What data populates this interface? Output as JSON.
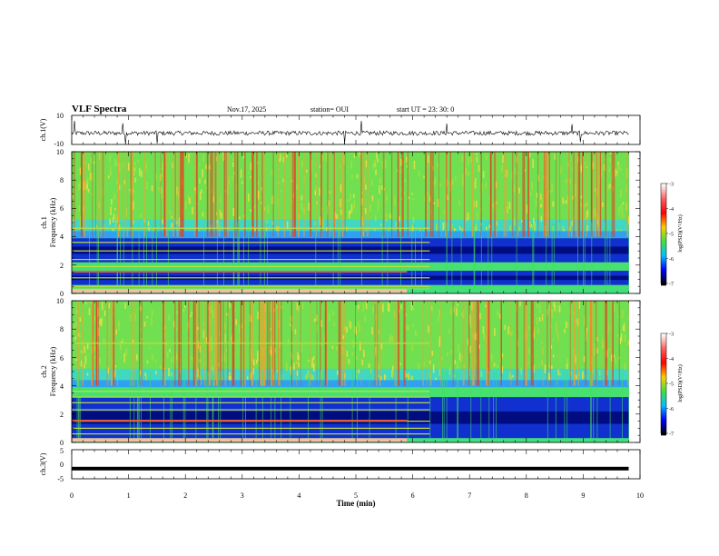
{
  "header": {
    "title": "VLF Spectra",
    "date": "Nov.17, 2025",
    "station": "station= OUI",
    "start": "start  UT  =   23: 30: 0"
  },
  "chart_data": [
    {
      "type": "line",
      "name": "ch1-waveform",
      "ylabel": "ch.1(V)",
      "ylim": [
        -10,
        10
      ],
      "y_ticks": [
        "10",
        "-10"
      ],
      "baseline": -2.2,
      "spike_times_min": [
        0.05,
        0.9,
        0.95,
        1.5,
        4.8,
        5.1,
        6.6,
        8.8,
        8.95
      ],
      "description": "waveform trace"
    },
    {
      "type": "heatmap",
      "name": "ch1-spectrogram",
      "ylabel": "ch.1\nFrequency (kHz)",
      "ylim": [
        0,
        10
      ],
      "y_ticks": [
        "0",
        "2",
        "4",
        "6",
        "8",
        "10"
      ],
      "xlim": [
        0,
        10
      ],
      "colorbar": {
        "label": "log(PSD)(V²/Hz)",
        "ticks": [
          "-3",
          "-4",
          "-5",
          "-6",
          "-7"
        ],
        "range": [
          -7,
          -3
        ]
      },
      "blue_band_khz": [
        [
          0.6,
          1.6
        ],
        [
          2.2,
          3.9
        ]
      ],
      "horizontal_lines_khz": [
        0.3,
        0.5,
        1.1,
        1.9,
        2.4,
        3.0,
        3.6,
        4.6
      ],
      "regime_change_min": 6.3
    },
    {
      "type": "heatmap",
      "name": "ch2-spectrogram",
      "ylabel": "ch.2\nFrequency (kHz)",
      "ylim": [
        0,
        10
      ],
      "y_ticks": [
        "0",
        "2",
        "4",
        "6",
        "8",
        "10"
      ],
      "xlim": [
        0,
        10
      ],
      "colorbar": {
        "label": "log(PSD)(V²/Hz)",
        "ticks": [
          "-3",
          "-4",
          "-5",
          "-6",
          "-7"
        ],
        "range": [
          -7,
          -3
        ]
      },
      "blue_band_khz": [
        [
          0.3,
          3.2
        ]
      ],
      "horizontal_lines_khz": [
        0.6,
        1.0,
        1.5,
        2.3,
        2.8,
        3.2,
        3.6,
        7.0
      ],
      "regime_change_min": 6.3
    },
    {
      "type": "line",
      "name": "ch3-waveform",
      "ylabel": "ch.3(V)",
      "ylim": [
        -5,
        5
      ],
      "y_ticks": [
        "5",
        "0",
        "-5"
      ],
      "constant_value": -1.5
    }
  ],
  "x_axis": {
    "xlabel": "Time (min)",
    "xlim": [
      0,
      10
    ],
    "ticks": [
      "0",
      "1",
      "2",
      "3",
      "4",
      "5",
      "6",
      "7",
      "8",
      "9",
      "10"
    ]
  },
  "colors": {
    "background": "#ffffff",
    "axis": "#000000"
  }
}
